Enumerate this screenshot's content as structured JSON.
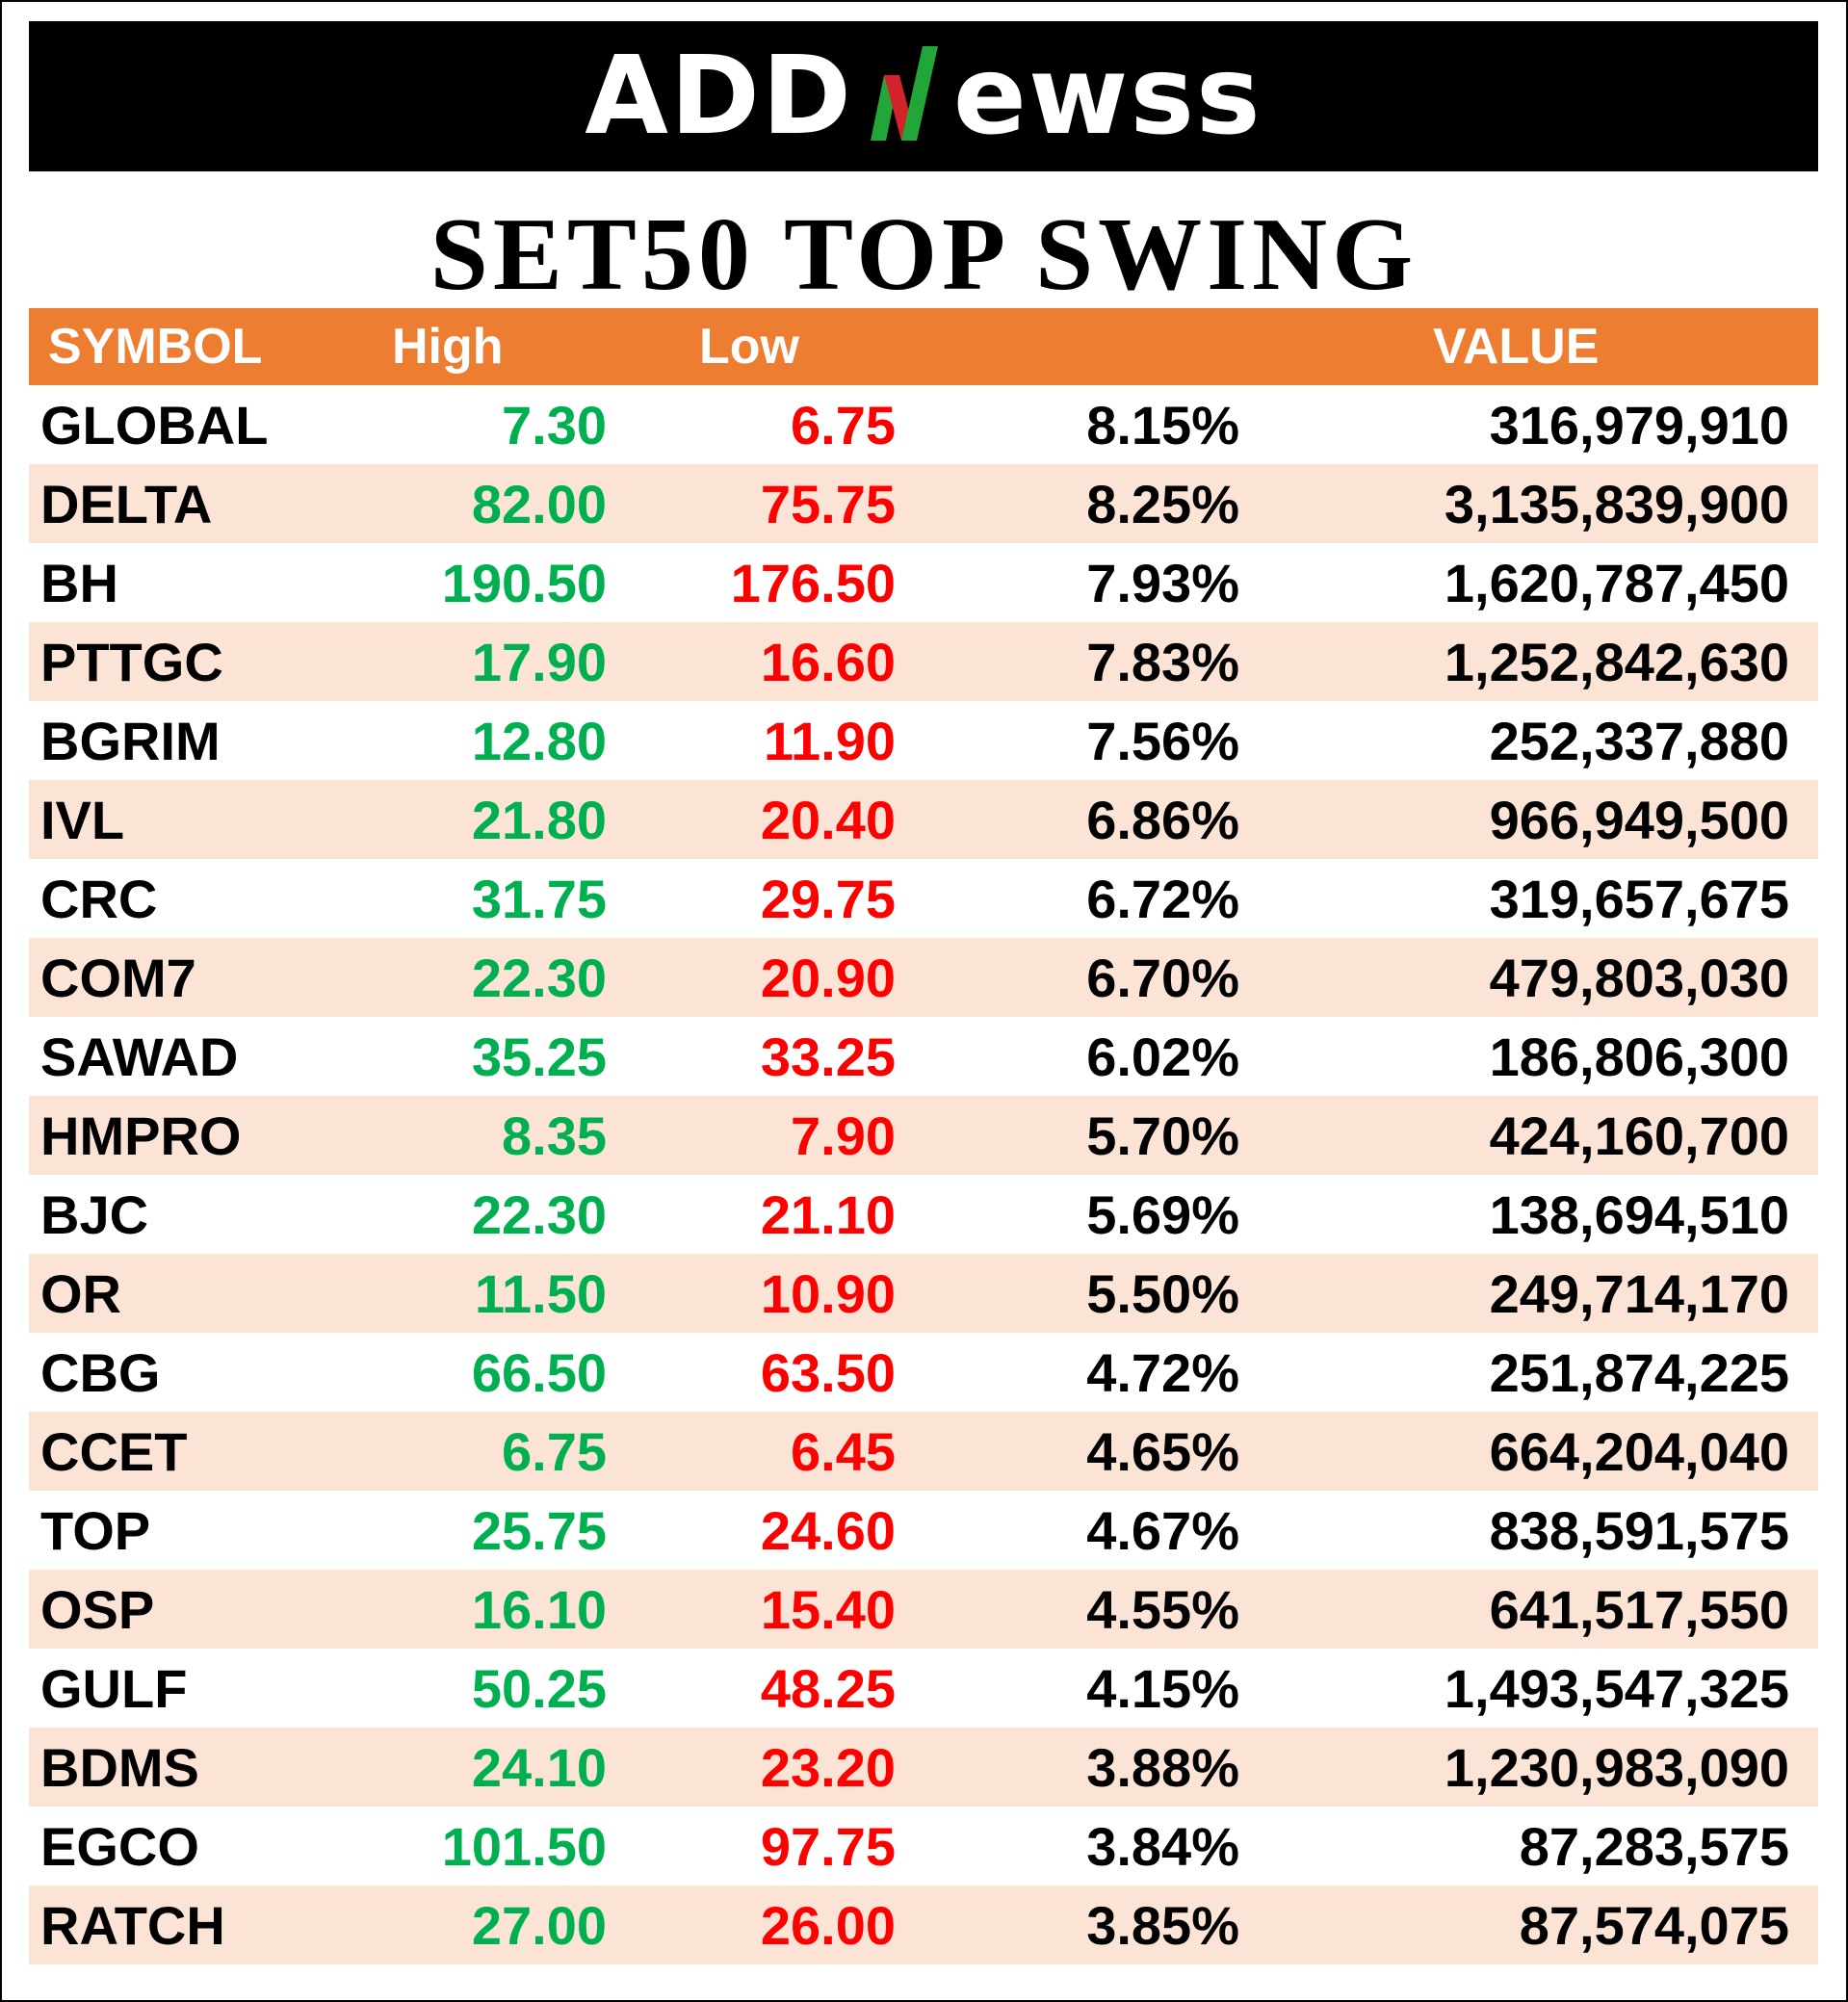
{
  "brand": {
    "logo_left": "ADD",
    "logo_right": "ewss",
    "logo_mark": "N",
    "colors": {
      "mark_green": "#22a539",
      "mark_red": "#d2232a",
      "header_orange": "#ed7d31",
      "stripe": "#fbe4d5",
      "high_green": "#00b050",
      "low_red": "#ff0000"
    }
  },
  "title": "SET50 TOP SWING",
  "table": {
    "headers": {
      "symbol": "SYMBOL",
      "high": "High",
      "low": "Low",
      "pct": "",
      "value": "VALUE"
    },
    "rows": [
      {
        "symbol": "GLOBAL",
        "high": "7.30",
        "low": "6.75",
        "pct": "8.15%",
        "value": "316,979,910"
      },
      {
        "symbol": "DELTA",
        "high": "82.00",
        "low": "75.75",
        "pct": "8.25%",
        "value": "3,135,839,900"
      },
      {
        "symbol": "BH",
        "high": "190.50",
        "low": "176.50",
        "pct": "7.93%",
        "value": "1,620,787,450"
      },
      {
        "symbol": "PTTGC",
        "high": "17.90",
        "low": "16.60",
        "pct": "7.83%",
        "value": "1,252,842,630"
      },
      {
        "symbol": "BGRIM",
        "high": "12.80",
        "low": "11.90",
        "pct": "7.56%",
        "value": "252,337,880"
      },
      {
        "symbol": "IVL",
        "high": "21.80",
        "low": "20.40",
        "pct": "6.86%",
        "value": "966,949,500"
      },
      {
        "symbol": "CRC",
        "high": "31.75",
        "low": "29.75",
        "pct": "6.72%",
        "value": "319,657,675"
      },
      {
        "symbol": "COM7",
        "high": "22.30",
        "low": "20.90",
        "pct": "6.70%",
        "value": "479,803,030"
      },
      {
        "symbol": "SAWAD",
        "high": "35.25",
        "low": "33.25",
        "pct": "6.02%",
        "value": "186,806,300"
      },
      {
        "symbol": "HMPRO",
        "high": "8.35",
        "low": "7.90",
        "pct": "5.70%",
        "value": "424,160,700"
      },
      {
        "symbol": "BJC",
        "high": "22.30",
        "low": "21.10",
        "pct": "5.69%",
        "value": "138,694,510"
      },
      {
        "symbol": "OR",
        "high": "11.50",
        "low": "10.90",
        "pct": "5.50%",
        "value": "249,714,170"
      },
      {
        "symbol": "CBG",
        "high": "66.50",
        "low": "63.50",
        "pct": "4.72%",
        "value": "251,874,225"
      },
      {
        "symbol": "CCET",
        "high": "6.75",
        "low": "6.45",
        "pct": "4.65%",
        "value": "664,204,040"
      },
      {
        "symbol": "TOP",
        "high": "25.75",
        "low": "24.60",
        "pct": "4.67%",
        "value": "838,591,575"
      },
      {
        "symbol": "OSP",
        "high": "16.10",
        "low": "15.40",
        "pct": "4.55%",
        "value": "641,517,550"
      },
      {
        "symbol": "GULF",
        "high": "50.25",
        "low": "48.25",
        "pct": "4.15%",
        "value": "1,493,547,325"
      },
      {
        "symbol": "BDMS",
        "high": "24.10",
        "low": "23.20",
        "pct": "3.88%",
        "value": "1,230,983,090"
      },
      {
        "symbol": "EGCO",
        "high": "101.50",
        "low": "97.75",
        "pct": "3.84%",
        "value": "87,283,575"
      },
      {
        "symbol": "RATCH",
        "high": "27.00",
        "low": "26.00",
        "pct": "3.85%",
        "value": "87,574,075"
      }
    ]
  }
}
